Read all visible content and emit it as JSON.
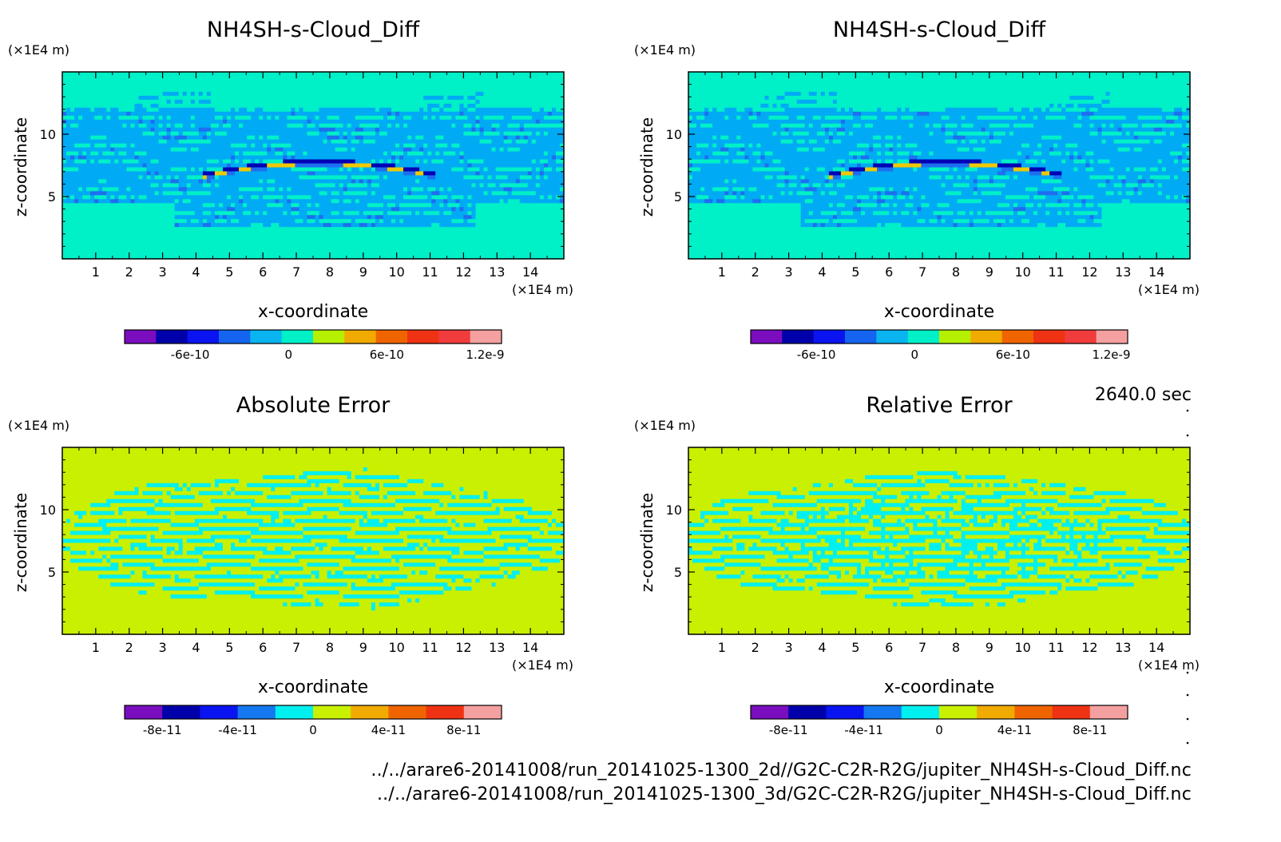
{
  "time_label": "2640.0 sec",
  "files": [
    "../../arare6-20141008/run_20141025-1300_2d//G2C-C2R-R2G/jupiter_NH4SH-s-Cloud_Diff.nc",
    "../../arare6-20141008/run_20141025-1300_3d/G2C-C2R-R2G/jupiter_NH4SH-s-Cloud_Diff.nc"
  ],
  "chart_data": [
    {
      "type": "heatmap",
      "title": "NH4SH-s-Cloud_Diff",
      "xlabel": "x-coordinate",
      "ylabel": "z-coordinate",
      "x_unit": "(×1E4 m)",
      "y_unit": "(×1E4 m)",
      "xlim": [
        0,
        15
      ],
      "ylim": [
        0,
        15
      ],
      "x_ticks": [
        1,
        2,
        3,
        4,
        5,
        6,
        7,
        8,
        9,
        10,
        11,
        12,
        13,
        14
      ],
      "y_ticks": [
        5,
        10
      ],
      "pattern": "cloud",
      "colorbar": {
        "colors": [
          "#7a0dbe",
          "#0000aa",
          "#0a14f0",
          "#1464f0",
          "#0ab4f0",
          "#00f0c8",
          "#b4f000",
          "#f0aa00",
          "#f06400",
          "#f03214",
          "#f03c3c",
          "#f5a0a0"
        ],
        "tick_labels": [
          "-6e-10",
          "0",
          "6e-10",
          "1.2e-9"
        ],
        "tick_values": [
          -6e-10,
          0,
          6e-10,
          1.2e-09
        ],
        "range": [
          -1e-09,
          1.3e-09
        ]
      }
    },
    {
      "type": "heatmap",
      "title": "NH4SH-s-Cloud_Diff",
      "xlabel": "x-coordinate",
      "ylabel": "z-coordinate",
      "x_unit": "(×1E4 m)",
      "y_unit": "(×1E4 m)",
      "xlim": [
        0,
        15
      ],
      "ylim": [
        0,
        15
      ],
      "x_ticks": [
        1,
        2,
        3,
        4,
        5,
        6,
        7,
        8,
        9,
        10,
        11,
        12,
        13,
        14
      ],
      "y_ticks": [
        5,
        10
      ],
      "pattern": "cloud",
      "colorbar": {
        "colors": [
          "#7a0dbe",
          "#0000aa",
          "#0a14f0",
          "#1464f0",
          "#0ab4f0",
          "#00f0c8",
          "#b4f000",
          "#f0aa00",
          "#f06400",
          "#f03214",
          "#f03c3c",
          "#f5a0a0"
        ],
        "tick_labels": [
          "-6e-10",
          "0",
          "6e-10",
          "1.2e-9"
        ],
        "tick_values": [
          -6e-10,
          0,
          6e-10,
          1.2e-09
        ],
        "range": [
          -1e-09,
          1.3e-09
        ]
      }
    },
    {
      "type": "heatmap",
      "title": "Absolute Error",
      "xlabel": "x-coordinate",
      "ylabel": "z-coordinate",
      "x_unit": "(×1E4 m)",
      "y_unit": "(×1E4 m)",
      "xlim": [
        0,
        15
      ],
      "ylim": [
        0,
        15
      ],
      "x_ticks": [
        1,
        2,
        3,
        4,
        5,
        6,
        7,
        8,
        9,
        10,
        11,
        12,
        13,
        14
      ],
      "y_ticks": [
        5,
        10
      ],
      "pattern": "error",
      "colorbar": {
        "colors": [
          "#7a0dbe",
          "#0000aa",
          "#0a14f0",
          "#1478f0",
          "#00f0f0",
          "#c8f000",
          "#f0aa00",
          "#f06400",
          "#f03214",
          "#f5a0a0"
        ],
        "tick_labels": [
          "-8e-11",
          "-4e-11",
          "0",
          "4e-11",
          "8e-11"
        ],
        "tick_values": [
          -8e-11,
          -4e-11,
          0,
          4e-11,
          8e-11
        ],
        "range": [
          -1e-10,
          1e-10
        ]
      }
    },
    {
      "type": "heatmap",
      "title": "Relative Error",
      "xlabel": "x-coordinate",
      "ylabel": "z-coordinate",
      "x_unit": "(×1E4 m)",
      "y_unit": "(×1E4 m)",
      "xlim": [
        0,
        15
      ],
      "ylim": [
        0,
        15
      ],
      "x_ticks": [
        1,
        2,
        3,
        4,
        5,
        6,
        7,
        8,
        9,
        10,
        11,
        12,
        13,
        14
      ],
      "y_ticks": [
        5,
        10
      ],
      "pattern": "error",
      "colorbar": {
        "colors": [
          "#7a0dbe",
          "#0000aa",
          "#0a14f0",
          "#1478f0",
          "#00f0f0",
          "#c8f000",
          "#f0aa00",
          "#f06400",
          "#f03214",
          "#f5a0a0"
        ],
        "tick_labels": [
          "-8e-11",
          "-4e-11",
          "0",
          "4e-11",
          "8e-11"
        ],
        "tick_values": [
          -8e-11,
          -4e-11,
          0,
          4e-11,
          8e-11
        ],
        "range": [
          -1e-10,
          1e-10
        ]
      }
    }
  ]
}
